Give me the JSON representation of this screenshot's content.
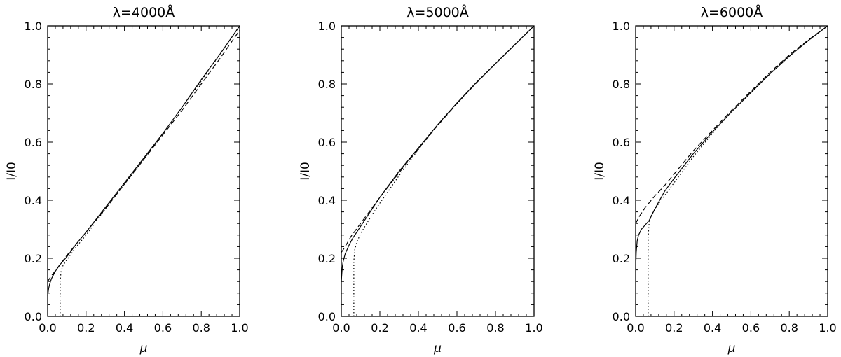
{
  "chart_data": [
    {
      "type": "line",
      "title": "λ=4000Å",
      "xlabel": "μ",
      "ylabel": "I/I0",
      "xlim": [
        0,
        1
      ],
      "ylim": [
        0,
        1
      ],
      "xticks": [
        "0.0",
        "0.2",
        "0.4",
        "0.6",
        "0.8",
        "1.0"
      ],
      "yticks": [
        "0.0",
        "0.2",
        "0.4",
        "0.6",
        "0.8",
        "1.0"
      ],
      "grid": false,
      "series": [
        {
          "style": "solid",
          "x": [
            0.0,
            0.005,
            0.01,
            0.02,
            0.04,
            0.06,
            0.08,
            0.1,
            0.15,
            0.2,
            0.3,
            0.4,
            0.5,
            0.6,
            0.7,
            0.8,
            0.9,
            1.0
          ],
          "y": [
            0.07,
            0.095,
            0.11,
            0.13,
            0.155,
            0.175,
            0.19,
            0.205,
            0.25,
            0.29,
            0.375,
            0.46,
            0.545,
            0.63,
            0.72,
            0.815,
            0.905,
            1.0
          ]
        },
        {
          "style": "dashed",
          "x": [
            0.0,
            0.02,
            0.05,
            0.1,
            0.15,
            0.2,
            0.3,
            0.4,
            0.5,
            0.6,
            0.7,
            0.8,
            0.9,
            1.0
          ],
          "y": [
            0.12,
            0.14,
            0.165,
            0.21,
            0.25,
            0.29,
            0.37,
            0.455,
            0.54,
            0.625,
            0.71,
            0.8,
            0.89,
            0.985
          ]
        },
        {
          "style": "dotted",
          "x": [
            0.065,
            0.065,
            0.07,
            0.08,
            0.1,
            0.15,
            0.2,
            0.3,
            0.4,
            0.5,
            0.6,
            0.7,
            0.8,
            0.9,
            1.0
          ],
          "y": [
            0.0,
            0.12,
            0.155,
            0.175,
            0.195,
            0.24,
            0.28,
            0.37,
            0.455,
            0.54,
            0.63,
            0.72,
            0.81,
            0.905,
            1.0
          ]
        }
      ]
    },
    {
      "type": "line",
      "title": "λ=5000Å",
      "xlabel": "μ",
      "ylabel": "I/I0",
      "xlim": [
        0,
        1
      ],
      "ylim": [
        0,
        1
      ],
      "xticks": [
        "0.0",
        "0.2",
        "0.4",
        "0.6",
        "0.8",
        "1.0"
      ],
      "yticks": [
        "0.0",
        "0.2",
        "0.4",
        "0.6",
        "0.8",
        "1.0"
      ],
      "grid": false,
      "series": [
        {
          "style": "solid",
          "x": [
            0.0,
            0.005,
            0.01,
            0.02,
            0.04,
            0.06,
            0.08,
            0.1,
            0.15,
            0.2,
            0.3,
            0.4,
            0.5,
            0.6,
            0.7,
            0.8,
            0.9,
            1.0
          ],
          "y": [
            0.12,
            0.17,
            0.19,
            0.215,
            0.245,
            0.27,
            0.29,
            0.31,
            0.36,
            0.41,
            0.5,
            0.58,
            0.66,
            0.735,
            0.805,
            0.87,
            0.935,
            1.0
          ]
        },
        {
          "style": "dashed",
          "x": [
            0.0,
            0.02,
            0.05,
            0.1,
            0.15,
            0.2,
            0.3,
            0.4,
            0.5,
            0.6,
            0.7,
            0.8,
            0.9,
            1.0
          ],
          "y": [
            0.22,
            0.24,
            0.275,
            0.32,
            0.365,
            0.41,
            0.495,
            0.578,
            0.658,
            0.733,
            0.803,
            0.87,
            0.935,
            1.0
          ]
        },
        {
          "style": "dotted",
          "x": [
            0.065,
            0.065,
            0.07,
            0.08,
            0.1,
            0.15,
            0.2,
            0.3,
            0.4,
            0.5,
            0.6,
            0.7,
            0.8,
            0.9,
            1.0
          ],
          "y": [
            0.0,
            0.19,
            0.23,
            0.255,
            0.285,
            0.34,
            0.39,
            0.485,
            0.575,
            0.657,
            0.733,
            0.803,
            0.87,
            0.935,
            1.0
          ]
        }
      ]
    },
    {
      "type": "line",
      "title": "λ=6000Å",
      "xlabel": "μ",
      "ylabel": "I/I0",
      "xlim": [
        0,
        1
      ],
      "ylim": [
        0,
        1
      ],
      "xticks": [
        "0.0",
        "0.2",
        "0.4",
        "0.6",
        "0.8",
        "1.0"
      ],
      "yticks": [
        "0.0",
        "0.2",
        "0.4",
        "0.6",
        "0.8",
        "1.0"
      ],
      "grid": false,
      "series": [
        {
          "style": "solid",
          "x": [
            0.0,
            0.003,
            0.008,
            0.015,
            0.03,
            0.05,
            0.07,
            0.1,
            0.15,
            0.2,
            0.3,
            0.4,
            0.5,
            0.6,
            0.7,
            0.8,
            0.9,
            1.0
          ],
          "y": [
            0.16,
            0.22,
            0.26,
            0.28,
            0.3,
            0.315,
            0.33,
            0.37,
            0.43,
            0.475,
            0.56,
            0.635,
            0.705,
            0.77,
            0.835,
            0.895,
            0.95,
            1.0
          ]
        },
        {
          "style": "dashed",
          "x": [
            0.0,
            0.02,
            0.05,
            0.1,
            0.15,
            0.2,
            0.3,
            0.4,
            0.5,
            0.6,
            0.7,
            0.8,
            0.9,
            1.0
          ],
          "y": [
            0.32,
            0.345,
            0.375,
            0.415,
            0.45,
            0.49,
            0.57,
            0.64,
            0.71,
            0.775,
            0.84,
            0.9,
            0.952,
            1.0
          ]
        },
        {
          "style": "dotted",
          "x": [
            0.065,
            0.065,
            0.07,
            0.08,
            0.1,
            0.15,
            0.2,
            0.3,
            0.4,
            0.5,
            0.6,
            0.7,
            0.8,
            0.9,
            1.0
          ],
          "y": [
            0.0,
            0.27,
            0.32,
            0.345,
            0.37,
            0.415,
            0.46,
            0.55,
            0.63,
            0.705,
            0.772,
            0.837,
            0.897,
            0.95,
            1.0
          ]
        }
      ]
    }
  ]
}
